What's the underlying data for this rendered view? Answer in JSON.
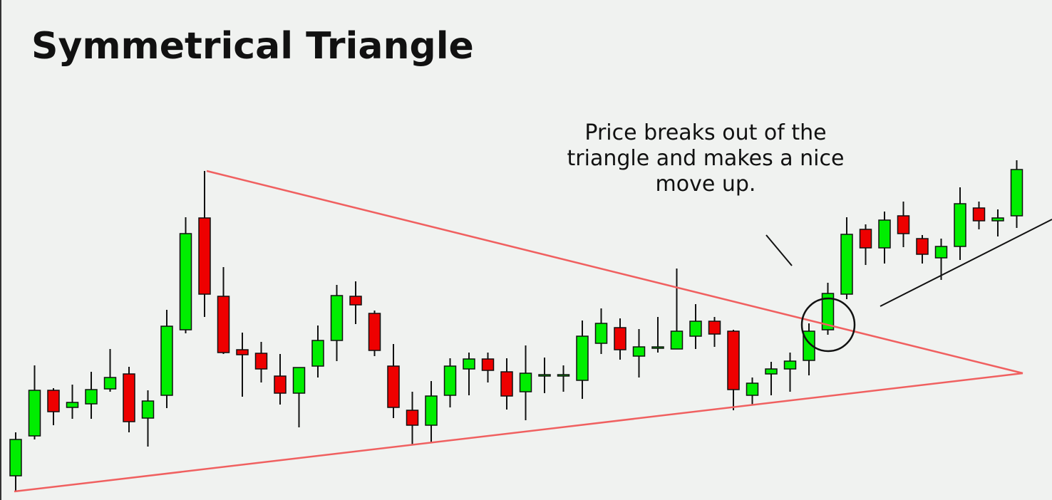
{
  "chart_data": {
    "type": "candlestick",
    "title": "Symmetrical Triangle",
    "annotation": [
      "Price breaks out of the",
      "triangle and makes a nice",
      "move up."
    ],
    "up_color": "#00ee00",
    "down_color": "#ee0000",
    "ylim": [
      0,
      700
    ],
    "open": [
      32,
      88,
      152,
      128,
      133,
      154,
      175,
      113,
      145,
      237,
      394,
      284,
      209,
      204,
      172,
      148,
      186,
      222,
      284,
      260,
      186,
      124,
      103,
      145,
      182,
      196,
      178,
      150,
      172,
      172,
      166,
      218,
      240,
      200,
      211,
      210,
      228,
      249,
      235,
      145,
      175,
      182,
      194,
      237,
      287,
      378,
      352,
      397,
      365,
      338,
      354,
      408,
      390,
      397
    ],
    "high": [
      93,
      187,
      155,
      160,
      178,
      210,
      185,
      152,
      265,
      395,
      460,
      325,
      233,
      220,
      203,
      184,
      243,
      300,
      305,
      264,
      217,
      150,
      165,
      197,
      205,
      205,
      197,
      215,
      198,
      187,
      250,
      267,
      253,
      238,
      255,
      323,
      273,
      255,
      237,
      170,
      192,
      205,
      246,
      303,
      395,
      385,
      403,
      417,
      370,
      365,
      437,
      417,
      406,
      475
    ],
    "low": [
      10,
      83,
      103,
      112,
      112,
      150,
      93,
      73,
      127,
      232,
      255,
      203,
      143,
      163,
      132,
      100,
      170,
      193,
      245,
      200,
      113,
      75,
      78,
      128,
      145,
      163,
      125,
      110,
      148,
      150,
      140,
      203,
      195,
      170,
      205,
      210,
      210,
      213,
      124,
      132,
      145,
      150,
      173,
      230,
      280,
      328,
      330,
      353,
      330,
      307,
      335,
      378,
      368,
      380
    ],
    "close": [
      83,
      152,
      122,
      135,
      153,
      170,
      108,
      137,
      242,
      372,
      287,
      205,
      202,
      182,
      148,
      184,
      222,
      285,
      272,
      208,
      128,
      103,
      144,
      186,
      196,
      180,
      144,
      176,
      174,
      174,
      228,
      246,
      209,
      213,
      213,
      235,
      249,
      231,
      153,
      162,
      182,
      193,
      235,
      288,
      371,
      352,
      391,
      372,
      343,
      354,
      414,
      390,
      394,
      462
    ]
  }
}
